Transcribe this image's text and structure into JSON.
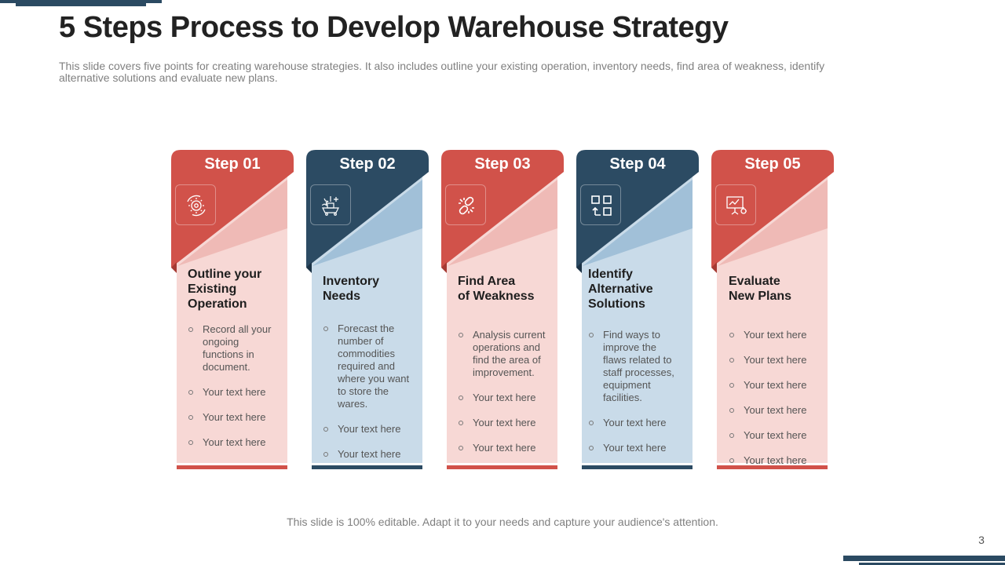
{
  "title": "5 Steps Process to Develop Warehouse Strategy",
  "subtitle": "This slide covers five points for creating warehouse strategies. It also includes outline your existing operation, inventory needs, find area of weakness, identify alternative solutions and evaluate new plans.",
  "footnote": "This slide is 100% editable. Adapt it to your needs and capture your audience's attention.",
  "page_number": "3",
  "colors": {
    "red": "#d1524a",
    "navy": "#2c4b63",
    "light_red": "#f7d8d5",
    "light_blue": "#c9dbe9"
  },
  "steps": [
    {
      "label": "Step 01",
      "icon": "gear-cycle-icon",
      "heading_lines": [
        "Outline your",
        "Existing",
        "Operation"
      ],
      "bullets": [
        "Record all your ongoing functions in document.",
        "Your text here",
        "Your text here",
        "Your text here"
      ]
    },
    {
      "label": "Step 02",
      "icon": "inventory-cart-icon",
      "heading_lines": [
        "Inventory",
        "Needs"
      ],
      "bullets": [
        "Forecast the number of commodities required and where you want to store the wares.",
        "Your text here",
        "Your text here"
      ]
    },
    {
      "label": "Step 03",
      "icon": "broken-link-icon",
      "heading_lines": [
        "Find Area",
        "of Weakness"
      ],
      "bullets": [
        "Analysis current operations and find the area of improvement.",
        "Your text here",
        "Your text here",
        "Your text here"
      ]
    },
    {
      "label": "Step 04",
      "icon": "alternative-blocks-icon",
      "heading_lines": [
        "Identify",
        "Alternative",
        "Solutions"
      ],
      "bullets": [
        "Find ways to improve the flaws related to staff processes, equipment facilities.",
        "Your text here",
        "Your text here"
      ]
    },
    {
      "label": "Step 05",
      "icon": "presentation-board-icon",
      "heading_lines": [
        "Evaluate",
        "New Plans"
      ],
      "bullets": [
        "Your text here",
        "Your text here",
        "Your text here",
        "Your text here",
        "Your text here",
        "Your text here"
      ]
    }
  ]
}
